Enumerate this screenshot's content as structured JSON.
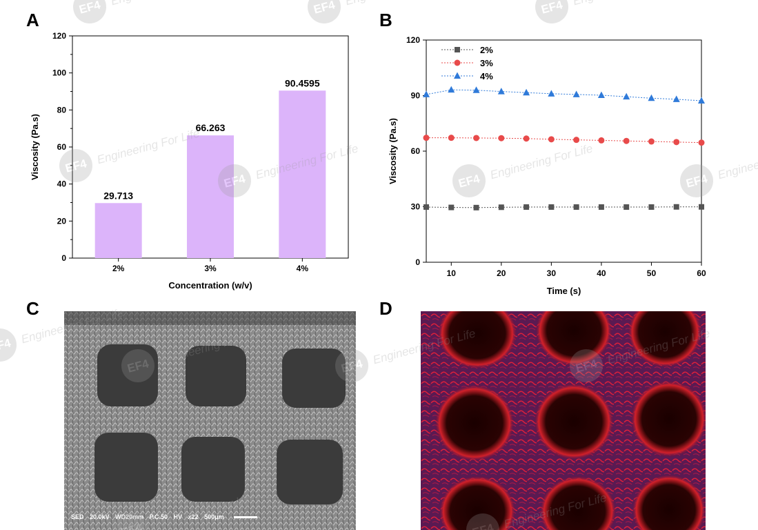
{
  "panels": {
    "a": "A",
    "b": "B",
    "c": "C",
    "d": "D"
  },
  "chart_data": [
    {
      "type": "bar",
      "categories": [
        "2%",
        "3%",
        "4%"
      ],
      "values": [
        29.713,
        66.263,
        90.4595
      ],
      "value_labels": [
        "29.713",
        "66.263",
        "90.4595"
      ],
      "xlabel": "Concentration (w/v)",
      "ylabel": "Viscosity (Pa.s)",
      "ylim": [
        0,
        120
      ],
      "yticks": [
        0,
        20,
        40,
        60,
        80,
        100,
        120
      ],
      "bar_color": "#dcb4fa",
      "grid": false
    },
    {
      "type": "line",
      "x": [
        5,
        10,
        15,
        20,
        25,
        30,
        35,
        40,
        45,
        50,
        55,
        60
      ],
      "series": [
        {
          "name": "2%",
          "marker": "square",
          "color": "#555555",
          "values": [
            29.8,
            29.6,
            29.5,
            29.7,
            29.8,
            29.8,
            29.8,
            29.8,
            29.8,
            29.8,
            29.9,
            29.9
          ]
        },
        {
          "name": "3%",
          "marker": "circle",
          "color": "#e84a4a",
          "values": [
            67.2,
            67.2,
            67.1,
            67.0,
            66.8,
            66.4,
            66.1,
            65.8,
            65.5,
            65.2,
            64.9,
            64.6
          ]
        },
        {
          "name": "4%",
          "marker": "triangle",
          "color": "#2f7ad9",
          "values": [
            90.6,
            93.1,
            92.9,
            92.2,
            91.6,
            91.0,
            90.6,
            90.2,
            89.4,
            88.6,
            88.0,
            87.2
          ]
        }
      ],
      "xlabel": "Time (s)",
      "ylabel": "Viscosity (Pa.s)",
      "xlim": [
        5,
        60
      ],
      "ylim": [
        0,
        120
      ],
      "xticks": [
        10,
        20,
        30,
        40,
        50,
        60
      ],
      "yticks": [
        0,
        30,
        60,
        90,
        120
      ],
      "legend": "top-left",
      "grid": false
    }
  ],
  "sem": {
    "caption": [
      "SED",
      "20.0kV",
      "WD20mm",
      "P.C.50",
      "HV",
      "x22",
      "500μm"
    ]
  },
  "watermark": "Engineering For Life"
}
